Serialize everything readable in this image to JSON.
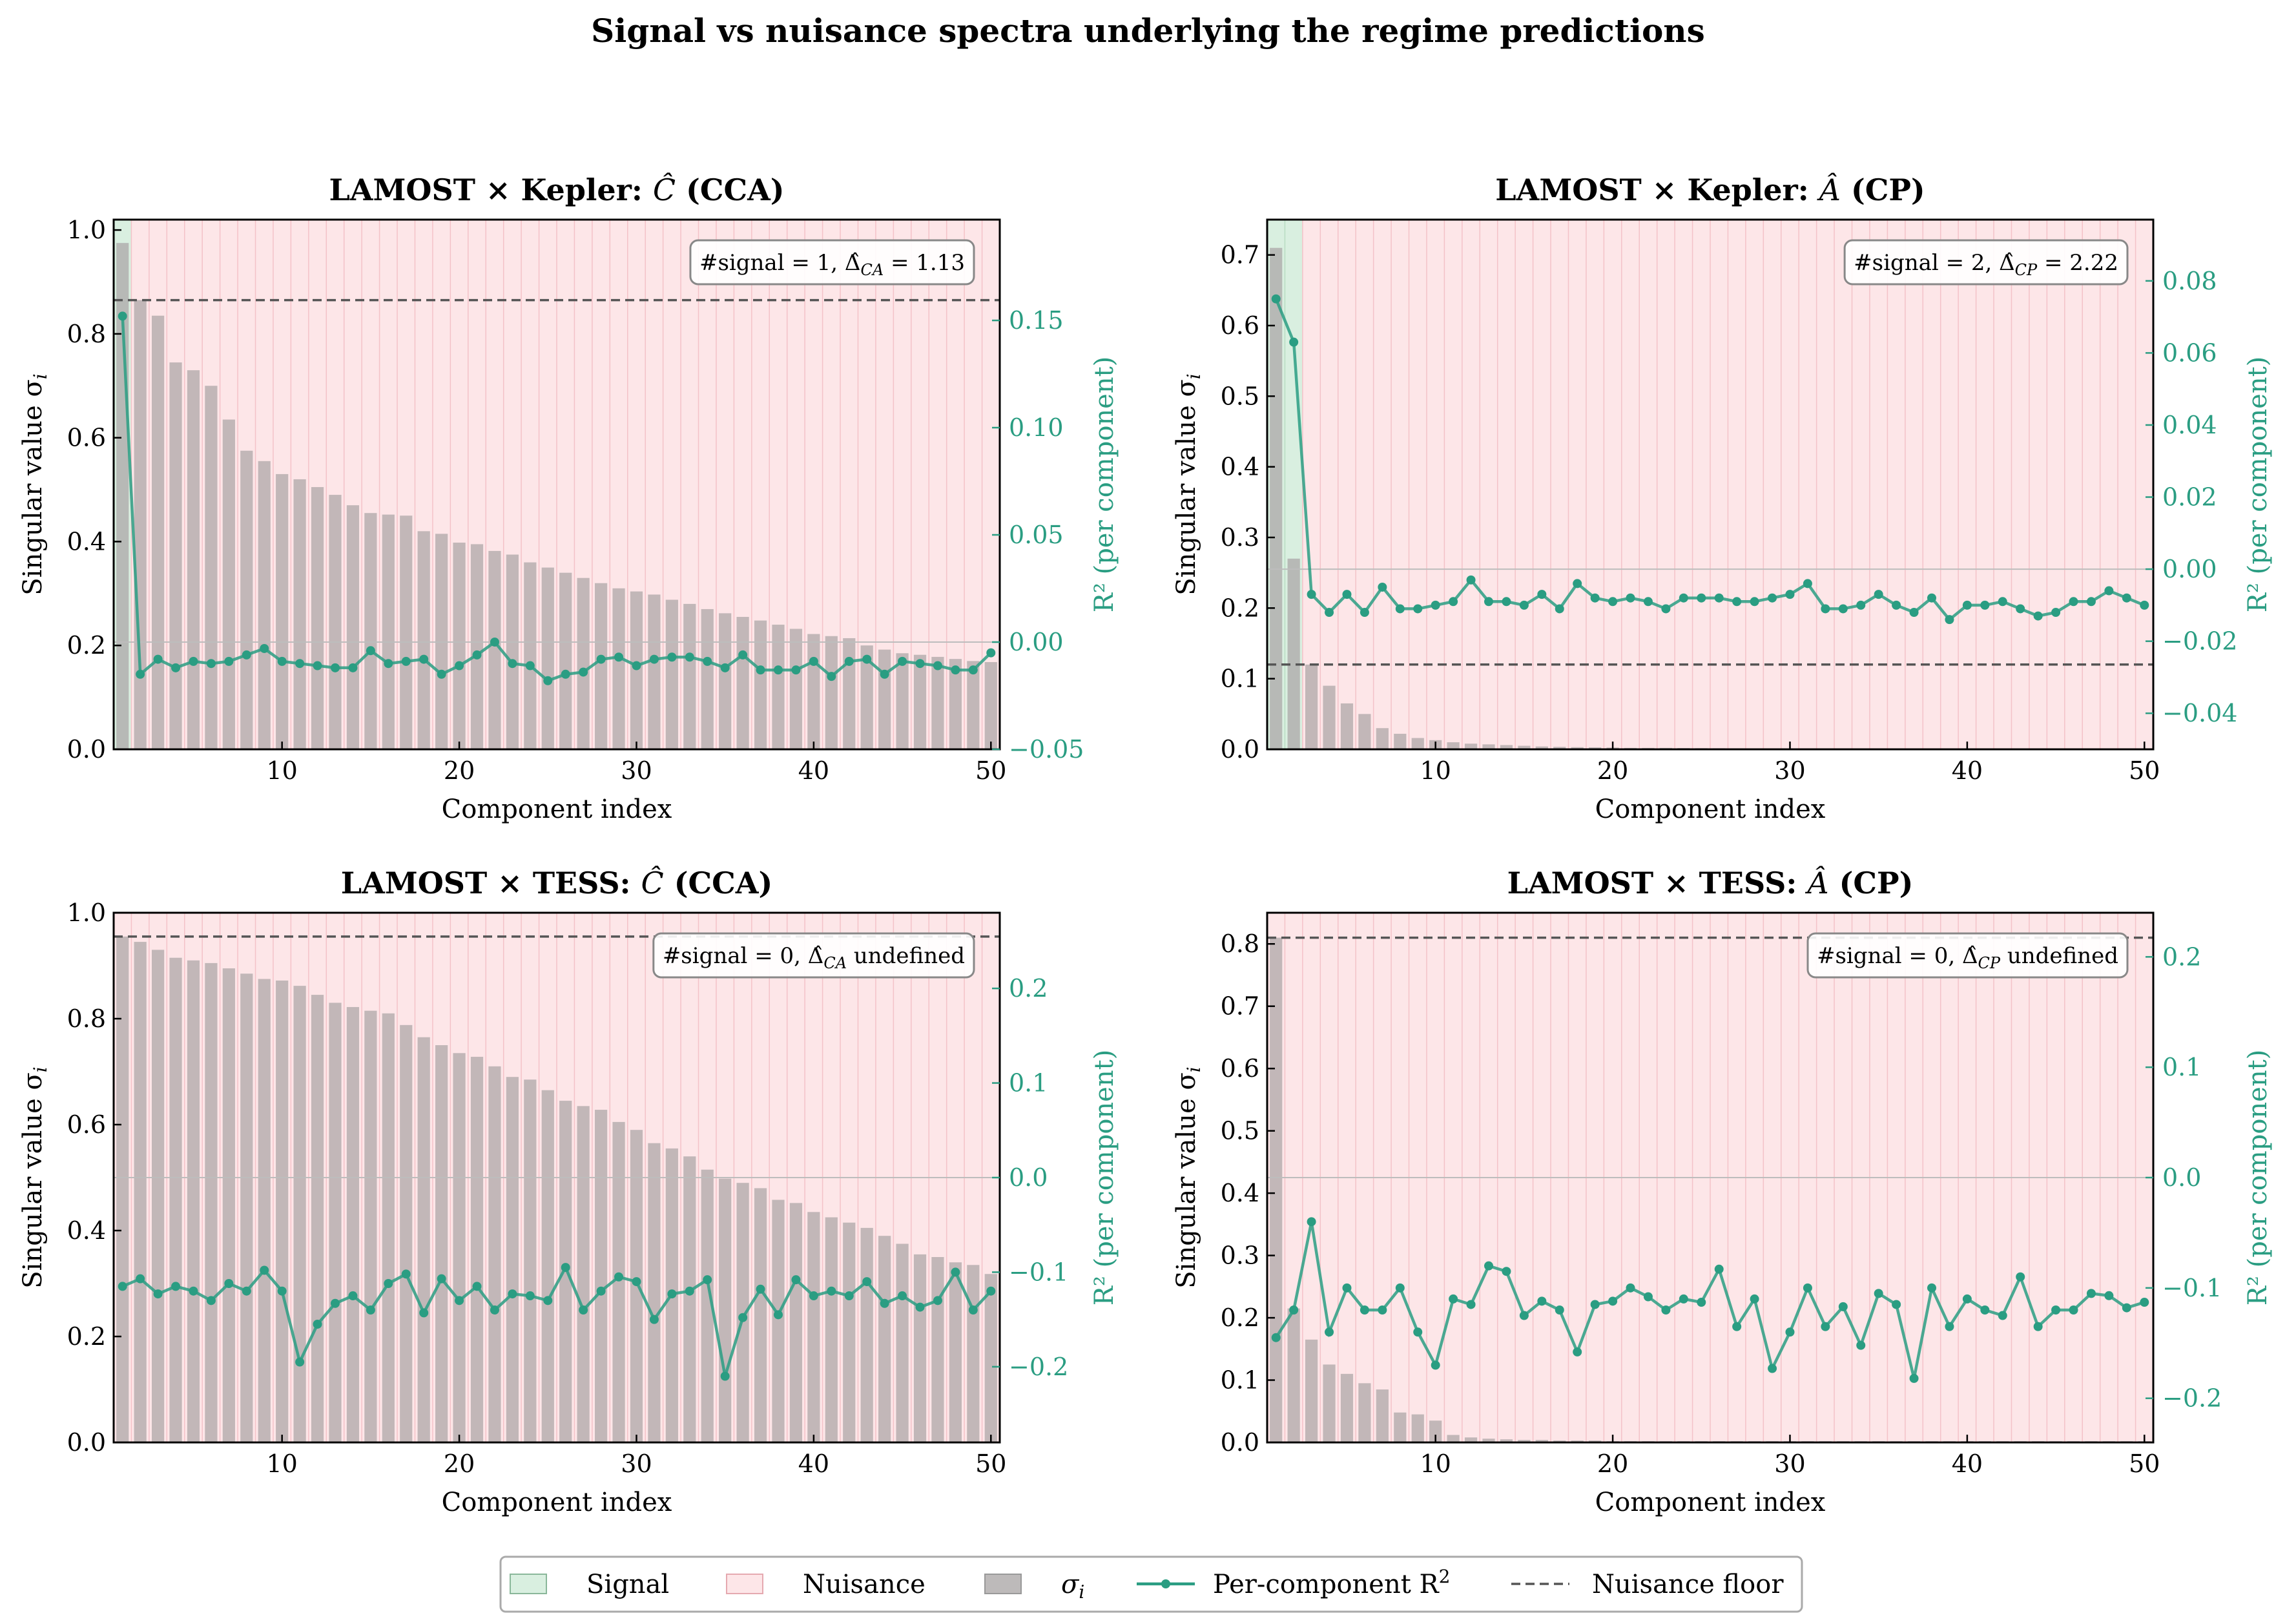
{
  "figure_title": "Signal vs nuisance spectra underlying the regime predictions",
  "colors": {
    "signal_band": "#d9efe0",
    "nuisance_band": "#fde6e8",
    "nuisance_stripe": "#f4c2c8",
    "bar": "#a8a2a4",
    "r2_line": "#2a9d82",
    "floor": "#555555"
  },
  "legend": {
    "signal": "Signal",
    "nuisance": "Nuisance",
    "sigma": "σ",
    "sigma_sub": "i",
    "r2": "Per-component R",
    "r2_sup": "2",
    "floor": "Nuisance floor"
  },
  "chart_data": [
    {
      "type": "bar",
      "title_pre": "LAMOST × Kepler: ",
      "title_sym": "Ĉ",
      "title_post": " (CCA)",
      "xlabel": "Component index",
      "ylabel": "Singular value σ",
      "ylabel_sub": "i",
      "y2label": "R² (per component)",
      "x_range": [
        0.5,
        50.5
      ],
      "xticks": [
        10,
        20,
        30,
        40,
        50
      ],
      "ylim": [
        0,
        1.02
      ],
      "yticks": [
        0.0,
        0.2,
        0.4,
        0.6,
        0.8,
        1.0
      ],
      "y2lim": [
        -0.05,
        0.197
      ],
      "y2ticks": [
        -0.05,
        0.0,
        0.05,
        0.1,
        0.15
      ],
      "signal_count": 1,
      "nuisance_floor": 0.865,
      "annotation": "#signal = 1,  Δ̂",
      "annotation_sub": "CA",
      "annotation_tail": " = 1.13",
      "sigma": [
        0.975,
        0.865,
        0.835,
        0.745,
        0.73,
        0.7,
        0.635,
        0.575,
        0.555,
        0.53,
        0.52,
        0.505,
        0.49,
        0.47,
        0.455,
        0.452,
        0.45,
        0.42,
        0.415,
        0.398,
        0.395,
        0.382,
        0.375,
        0.36,
        0.35,
        0.34,
        0.33,
        0.32,
        0.31,
        0.304,
        0.298,
        0.288,
        0.28,
        0.27,
        0.262,
        0.255,
        0.248,
        0.24,
        0.232,
        0.222,
        0.218,
        0.214,
        0.2,
        0.192,
        0.185,
        0.182,
        0.178,
        0.174,
        0.17,
        0.168
      ],
      "r2": [
        0.152,
        -0.015,
        -0.008,
        -0.012,
        -0.009,
        -0.01,
        -0.009,
        -0.006,
        -0.003,
        -0.009,
        -0.01,
        -0.011,
        -0.012,
        -0.012,
        -0.004,
        -0.01,
        -0.009,
        -0.008,
        -0.015,
        -0.011,
        -0.006,
        0.0,
        -0.01,
        -0.011,
        -0.018,
        -0.015,
        -0.014,
        -0.008,
        -0.007,
        -0.011,
        -0.008,
        -0.007,
        -0.007,
        -0.009,
        -0.012,
        -0.006,
        -0.013,
        -0.013,
        -0.013,
        -0.009,
        -0.016,
        -0.009,
        -0.008,
        -0.015,
        -0.009,
        -0.01,
        -0.011,
        -0.013,
        -0.013,
        -0.005
      ]
    },
    {
      "type": "bar",
      "title_pre": "LAMOST × Kepler: ",
      "title_sym": "Â",
      "title_post": " (CP)",
      "xlabel": "Component index",
      "ylabel": "Singular value σ",
      "ylabel_sub": "i",
      "y2label": "R² (per component)",
      "x_range": [
        0.5,
        50.5
      ],
      "xticks": [
        10,
        20,
        30,
        40,
        50
      ],
      "ylim": [
        0,
        0.75
      ],
      "yticks": [
        0.0,
        0.1,
        0.2,
        0.3,
        0.4,
        0.5,
        0.6,
        0.7
      ],
      "y2lim": [
        -0.05,
        0.097
      ],
      "y2ticks": [
        -0.04,
        -0.02,
        0.0,
        0.02,
        0.04,
        0.06,
        0.08
      ],
      "signal_count": 2,
      "nuisance_floor": 0.12,
      "annotation": "#signal = 2,  Δ̂",
      "annotation_sub": "CP",
      "annotation_tail": " = 2.22",
      "sigma": [
        0.71,
        0.27,
        0.12,
        0.09,
        0.065,
        0.05,
        0.03,
        0.022,
        0.016,
        0.013,
        0.01,
        0.008,
        0.007,
        0.006,
        0.005,
        0.004,
        0.0035,
        0.003,
        0.0028,
        0.0025,
        0.002,
        0.002,
        0.002,
        0.0018,
        0.0016,
        0.0015,
        0.0014,
        0.0013,
        0.0012,
        0.0011,
        0.001,
        0.001,
        0.001,
        0.001,
        0.001,
        0.001,
        0.001,
        0.001,
        0.001,
        0.001,
        0.001,
        0.001,
        0.001,
        0.001,
        0.001,
        0.001,
        0.001,
        0.001,
        0.001,
        0.001
      ],
      "r2": [
        0.075,
        0.063,
        -0.007,
        -0.012,
        -0.007,
        -0.012,
        -0.005,
        -0.011,
        -0.011,
        -0.01,
        -0.009,
        -0.003,
        -0.009,
        -0.009,
        -0.01,
        -0.007,
        -0.011,
        -0.004,
        -0.008,
        -0.009,
        -0.008,
        -0.009,
        -0.011,
        -0.008,
        -0.008,
        -0.008,
        -0.009,
        -0.009,
        -0.008,
        -0.007,
        -0.004,
        -0.011,
        -0.011,
        -0.01,
        -0.007,
        -0.01,
        -0.012,
        -0.008,
        -0.014,
        -0.01,
        -0.01,
        -0.009,
        -0.011,
        -0.013,
        -0.012,
        -0.009,
        -0.009,
        -0.006,
        -0.008,
        -0.01
      ]
    },
    {
      "type": "bar",
      "title_pre": "LAMOST × TESS: ",
      "title_sym": "Ĉ",
      "title_post": " (CCA)",
      "xlabel": "Component index",
      "ylabel": "Singular value σ",
      "ylabel_sub": "i",
      "y2label": "R² (per component)",
      "x_range": [
        0.5,
        50.5
      ],
      "xticks": [
        10,
        20,
        30,
        40,
        50
      ],
      "ylim": [
        0,
        1.0
      ],
      "yticks": [
        0.0,
        0.2,
        0.4,
        0.6,
        0.8,
        1.0
      ],
      "y2lim": [
        -0.28,
        0.28
      ],
      "y2ticks": [
        -0.2,
        -0.1,
        0.0,
        0.1,
        0.2
      ],
      "signal_count": 0,
      "nuisance_floor": 0.955,
      "annotation": "#signal = 0,  Δ̂",
      "annotation_sub": "CA",
      "annotation_tail": " undefined",
      "sigma": [
        0.955,
        0.945,
        0.93,
        0.915,
        0.91,
        0.905,
        0.895,
        0.885,
        0.875,
        0.872,
        0.862,
        0.845,
        0.83,
        0.822,
        0.815,
        0.81,
        0.788,
        0.765,
        0.75,
        0.735,
        0.728,
        0.71,
        0.69,
        0.685,
        0.665,
        0.645,
        0.635,
        0.628,
        0.605,
        0.59,
        0.565,
        0.555,
        0.54,
        0.515,
        0.498,
        0.49,
        0.48,
        0.458,
        0.452,
        0.435,
        0.425,
        0.415,
        0.405,
        0.39,
        0.375,
        0.355,
        0.35,
        0.34,
        0.335,
        0.318
      ],
      "r2": [
        -0.115,
        -0.107,
        -0.123,
        -0.115,
        -0.12,
        -0.13,
        -0.112,
        -0.12,
        -0.098,
        -0.12,
        -0.195,
        -0.155,
        -0.133,
        -0.125,
        -0.14,
        -0.112,
        -0.102,
        -0.143,
        -0.107,
        -0.13,
        -0.115,
        -0.14,
        -0.123,
        -0.125,
        -0.13,
        -0.095,
        -0.14,
        -0.12,
        -0.105,
        -0.11,
        -0.15,
        -0.123,
        -0.12,
        -0.108,
        -0.21,
        -0.148,
        -0.118,
        -0.145,
        -0.108,
        -0.125,
        -0.12,
        -0.125,
        -0.11,
        -0.133,
        -0.125,
        -0.137,
        -0.13,
        -0.1,
        -0.14,
        -0.12
      ]
    },
    {
      "type": "bar",
      "title_pre": "LAMOST × TESS: ",
      "title_sym": "Â",
      "title_post": " (CP)",
      "xlabel": "Component index",
      "ylabel": "Singular value σ",
      "ylabel_sub": "i",
      "y2label": "R² (per component)",
      "x_range": [
        0.5,
        50.5
      ],
      "xticks": [
        10,
        20,
        30,
        40,
        50
      ],
      "ylim": [
        0,
        0.85
      ],
      "yticks": [
        0.0,
        0.1,
        0.2,
        0.3,
        0.4,
        0.5,
        0.6,
        0.7,
        0.8
      ],
      "y2lim": [
        -0.24,
        0.24
      ],
      "y2ticks": [
        -0.2,
        -0.1,
        0.0,
        0.1,
        0.2
      ],
      "signal_count": 0,
      "nuisance_floor": 0.81,
      "annotation": "#signal = 0,  Δ̂",
      "annotation_sub": "CP",
      "annotation_tail": " undefined",
      "sigma": [
        0.81,
        0.215,
        0.165,
        0.125,
        0.11,
        0.095,
        0.085,
        0.048,
        0.045,
        0.035,
        0.012,
        0.008,
        0.006,
        0.005,
        0.004,
        0.004,
        0.003,
        0.003,
        0.003,
        0.002,
        0.002,
        0.002,
        0.002,
        0.002,
        0.002,
        0.002,
        0.002,
        0.002,
        0.002,
        0.002,
        0.002,
        0.002,
        0.002,
        0.002,
        0.002,
        0.002,
        0.002,
        0.002,
        0.002,
        0.002,
        0.002,
        0.002,
        0.002,
        0.002,
        0.002,
        0.002,
        0.002,
        0.002,
        0.002,
        0.002
      ],
      "r2": [
        -0.145,
        -0.12,
        -0.04,
        -0.14,
        -0.1,
        -0.12,
        -0.12,
        -0.1,
        -0.14,
        -0.17,
        -0.11,
        -0.115,
        -0.08,
        -0.085,
        -0.125,
        -0.112,
        -0.12,
        -0.158,
        -0.115,
        -0.112,
        -0.1,
        -0.108,
        -0.12,
        -0.11,
        -0.113,
        -0.083,
        -0.135,
        -0.11,
        -0.173,
        -0.14,
        -0.1,
        -0.135,
        -0.117,
        -0.152,
        -0.105,
        -0.115,
        -0.182,
        -0.1,
        -0.135,
        -0.11,
        -0.12,
        -0.125,
        -0.09,
        -0.135,
        -0.12,
        -0.12,
        -0.105,
        -0.107,
        -0.118,
        -0.113
      ]
    }
  ]
}
